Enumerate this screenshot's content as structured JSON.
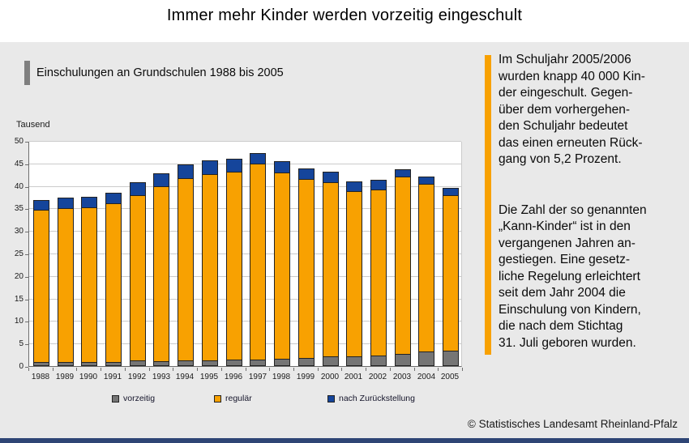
{
  "page": {
    "title": "Immer mehr Kinder werden vorzeitig eingeschult",
    "footer": "© Statistisches Landesamt Rheinland-Pfalz"
  },
  "subtitle": {
    "text": "Einschulungen an Grundschulen 1988 bis 2005"
  },
  "sidebar": {
    "paragraphs": [
      {
        "lines": [
          "Im Schuljahr 2005/2006",
          "wurden knapp 40 000 Kin-",
          "der eingeschult. Gegen-",
          "über dem vorhergehen-",
          "den Schuljahr bedeutet",
          "das einen erneuten Rück-",
          "gang von 5,2 Prozent."
        ]
      },
      {
        "lines": [
          "Die Zahl der so genannten",
          "„Kann-Kinder“ ist in den",
          "vergangenen Jahren an-",
          "gestiegen. Eine gesetz-",
          "liche Regelung erleichtert",
          "seit dem Jahr 2004 die",
          "Einschulung von Kindern,",
          "die nach dem Stichtag",
          "31. Juli geboren wurden."
        ]
      }
    ]
  },
  "chart_data": {
    "type": "bar",
    "stacked": true,
    "title": "Einschulungen an Grundschulen 1988 bis 2005",
    "unit_label": "Tausend",
    "categories": [
      "1988",
      "1989",
      "1990",
      "1991",
      "1992",
      "1993",
      "1994",
      "1995",
      "1996",
      "1997",
      "1998",
      "1999",
      "2000",
      "2001",
      "2002",
      "2003",
      "2004",
      "2005"
    ],
    "series": [
      {
        "name": "vorzeitig",
        "color": "#757575",
        "values": [
          0.7,
          0.7,
          0.7,
          0.8,
          1.0,
          0.9,
          1.0,
          1.0,
          1.3,
          1.3,
          1.5,
          1.7,
          1.9,
          2.0,
          2.2,
          2.5,
          3.1,
          3.3
        ]
      },
      {
        "name": "regulär",
        "color": "#F8A101",
        "values": [
          33.9,
          34.1,
          34.3,
          35.2,
          36.7,
          38.9,
          40.5,
          41.4,
          41.7,
          43.5,
          41.4,
          39.8,
          38.6,
          36.7,
          36.8,
          39.3,
          37.2,
          34.6
        ]
      },
      {
        "name": "nach Zurückstellung",
        "color": "#15459B",
        "values": [
          2.1,
          2.3,
          2.4,
          2.4,
          2.9,
          2.8,
          3.0,
          3.0,
          2.9,
          2.4,
          2.6,
          2.3,
          2.4,
          2.1,
          2.1,
          1.7,
          1.6,
          1.7
        ]
      }
    ],
    "ylim": [
      0,
      50
    ],
    "ytick_step": 5,
    "grid": true,
    "legend_position": "bottom"
  },
  "colors": {
    "panel_bg": "#E9E9E9",
    "plot_bg": "#FFFFFF",
    "gridline": "#CBCBCB",
    "axis": "#6E6E6E",
    "bar_outline": "#222222",
    "bottom_bar": "#2E4575",
    "marker": "#7F7F7F",
    "accent": "#F8A101"
  }
}
